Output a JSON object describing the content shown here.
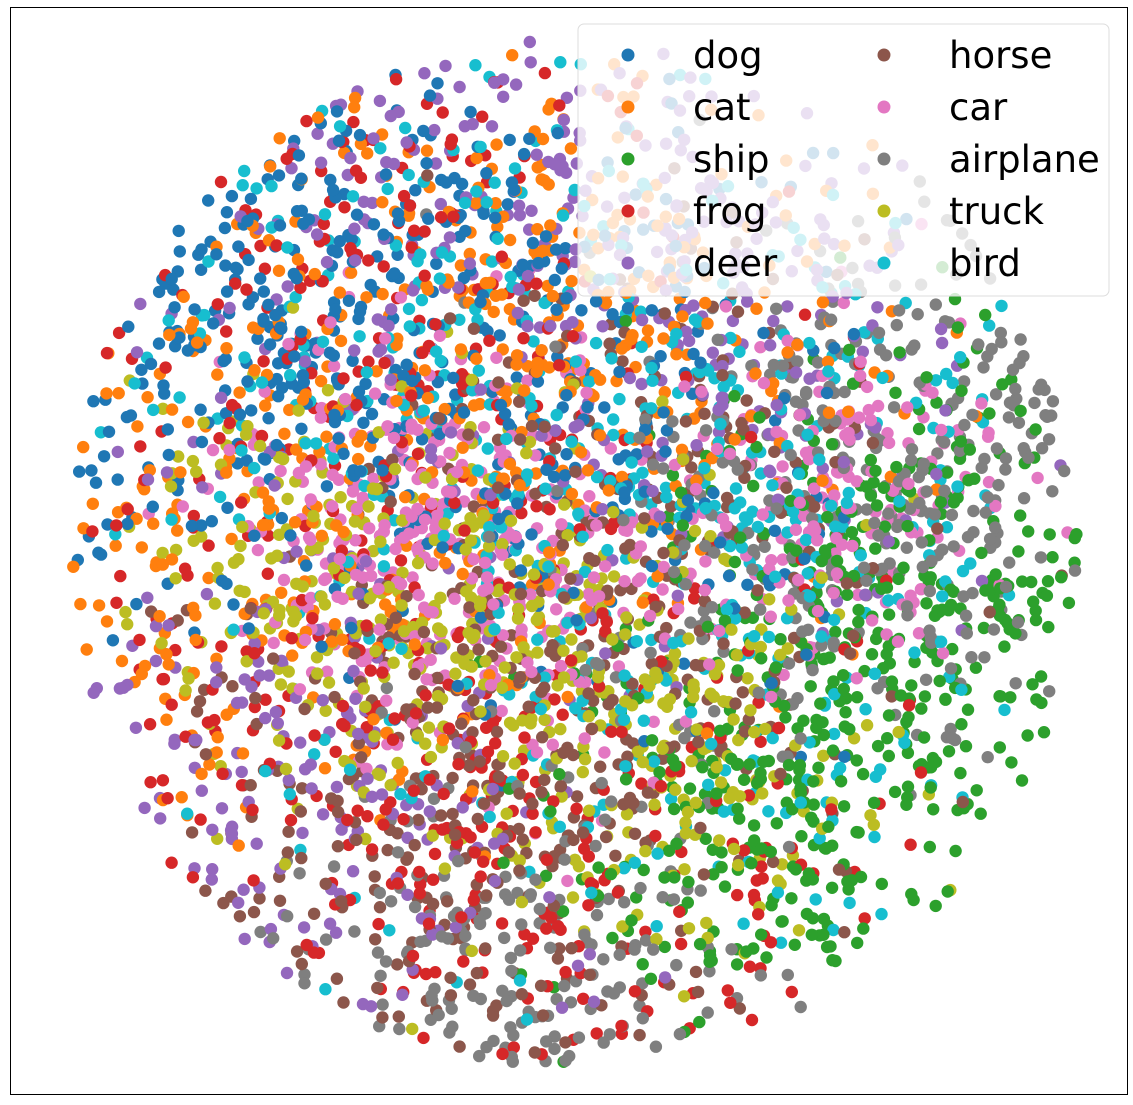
{
  "chart_data": {
    "type": "scatter",
    "axes_visible": false,
    "grid": false,
    "legend_position": "top-right",
    "legend_columns": 2,
    "xlim": [
      -100,
      100
    ],
    "ylim": [
      -100,
      100
    ],
    "series": [
      {
        "name": "dog",
        "color": "#1f77b4",
        "centers": [
          [
            -40,
            50
          ],
          [
            5,
            25
          ],
          [
            -70,
            40
          ]
        ],
        "spread": 28,
        "count": 520
      },
      {
        "name": "cat",
        "color": "#ff7f0e",
        "centers": [
          [
            -20,
            45
          ],
          [
            15,
            40
          ],
          [
            -70,
            0
          ]
        ],
        "spread": 30,
        "count": 520
      },
      {
        "name": "ship",
        "color": "#2ca02c",
        "centers": [
          [
            60,
            -25
          ],
          [
            35,
            -55
          ],
          [
            70,
            5
          ]
        ],
        "spread": 22,
        "count": 520
      },
      {
        "name": "frog",
        "color": "#d62728",
        "centers": [
          [
            -35,
            55
          ],
          [
            -40,
            -30
          ],
          [
            5,
            -65
          ]
        ],
        "spread": 32,
        "count": 520
      },
      {
        "name": "deer",
        "color": "#9467bd",
        "centers": [
          [
            -25,
            65
          ],
          [
            30,
            40
          ],
          [
            -60,
            -50
          ]
        ],
        "spread": 30,
        "count": 520
      },
      {
        "name": "horse",
        "color": "#8c564b",
        "centers": [
          [
            -5,
            -30
          ],
          [
            20,
            10
          ],
          [
            -25,
            -55
          ]
        ],
        "spread": 26,
        "count": 520
      },
      {
        "name": "car",
        "color": "#e377c2",
        "centers": [
          [
            -35,
            10
          ],
          [
            -15,
            -5
          ],
          [
            50,
            10
          ]
        ],
        "spread": 18,
        "count": 520
      },
      {
        "name": "airplane",
        "color": "#7f7f7f",
        "centers": [
          [
            45,
            0
          ],
          [
            75,
            25
          ],
          [
            -10,
            -88
          ]
        ],
        "spread": 24,
        "count": 520
      },
      {
        "name": "truck",
        "color": "#bcbd22",
        "centers": [
          [
            -50,
            -10
          ],
          [
            -15,
            -15
          ],
          [
            20,
            -40
          ]
        ],
        "spread": 22,
        "count": 520
      },
      {
        "name": "bird",
        "color": "#17becf",
        "centers": [
          [
            25,
            -30
          ],
          [
            -30,
            40
          ],
          [
            30,
            20
          ]
        ],
        "spread": 30,
        "count": 520
      }
    ]
  }
}
